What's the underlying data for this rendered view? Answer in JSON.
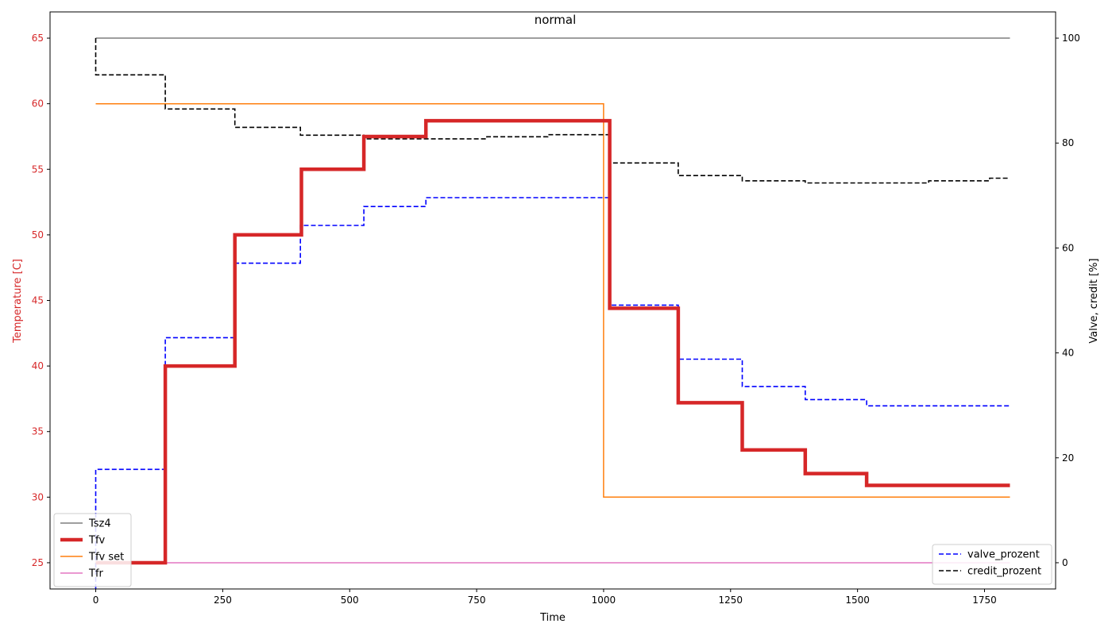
{
  "chart_data": {
    "type": "line",
    "title": "normal",
    "xlabel": "Time",
    "ylabel_left": "Temperature [C]",
    "ylabel_right": "Valve, credit [%]",
    "xlim": [
      -90,
      1890
    ],
    "ylim_left": [
      23,
      67
    ],
    "ylim_right": [
      -5,
      105
    ],
    "xticks": [
      0,
      250,
      500,
      750,
      1000,
      1250,
      1500,
      1750
    ],
    "yticks_left": [
      25,
      30,
      35,
      40,
      45,
      50,
      55,
      60,
      65
    ],
    "yticks_right": [
      0,
      20,
      40,
      60,
      80,
      100
    ],
    "grid": false,
    "legend_left_placement": "lower-left",
    "legend_right_placement": "lower-right",
    "colors": {
      "left_axis": "#d62728",
      "Tsz4": "#7f7f7f",
      "Tfv": "#d62728",
      "Tfv set": "#ff7f0e",
      "Tfr": "#e377c2",
      "valve_prozent": "#0000ff",
      "credit_prozent": "#000000"
    },
    "series_left": [
      {
        "name": "Tsz4",
        "x": [
          0,
          1800
        ],
        "y": [
          65,
          65
        ]
      },
      {
        "name": "Tfv",
        "x": [
          0,
          137,
          137,
          274,
          274,
          405,
          405,
          528,
          528,
          650,
          650,
          1012,
          1012,
          1147,
          1147,
          1273,
          1273,
          1397,
          1397,
          1518,
          1518,
          1800
        ],
        "y": [
          25,
          25,
          40,
          40,
          50,
          50,
          55,
          55,
          57.5,
          57.5,
          58.7,
          58.7,
          44.4,
          44.4,
          37.2,
          37.2,
          33.6,
          33.6,
          31.8,
          31.8,
          30.9,
          30.9
        ]
      },
      {
        "name": "Tfv set",
        "x": [
          0,
          1000,
          1000,
          1800
        ],
        "y": [
          60,
          60,
          30,
          30
        ]
      },
      {
        "name": "Tfr",
        "x": [
          0,
          1800
        ],
        "y": [
          25,
          25
        ]
      }
    ],
    "series_right": [
      {
        "name": "valve_prozent",
        "x": [
          0,
          0,
          137,
          137,
          274,
          274,
          403,
          403,
          528,
          528,
          650,
          650,
          1012,
          1012,
          1147,
          1147,
          1273,
          1273,
          1397,
          1397,
          1518,
          1518,
          1800
        ],
        "y": [
          -5,
          17.8,
          17.8,
          42.9,
          42.9,
          57.1,
          57.1,
          64.3,
          64.3,
          67.9,
          67.9,
          69.6,
          69.6,
          49.1,
          49.1,
          38.8,
          38.8,
          33.6,
          33.6,
          31.1,
          31.1,
          29.9,
          29.9
        ]
      },
      {
        "name": "credit_prozent",
        "x": [
          0,
          0,
          137,
          137,
          274,
          274,
          403,
          403,
          528,
          528,
          770,
          770,
          890,
          890,
          1012,
          1012,
          1147,
          1147,
          1273,
          1273,
          1397,
          1397,
          1640,
          1640,
          1760,
          1760,
          1800
        ],
        "y": [
          100,
          93,
          93,
          86.5,
          86.5,
          83,
          83,
          81.5,
          81.5,
          80.8,
          80.8,
          81.2,
          81.2,
          81.6,
          81.6,
          76.2,
          76.2,
          73.8,
          73.8,
          72.8,
          72.8,
          72.4,
          72.4,
          72.8,
          72.8,
          73.3,
          73.3
        ]
      }
    ]
  }
}
